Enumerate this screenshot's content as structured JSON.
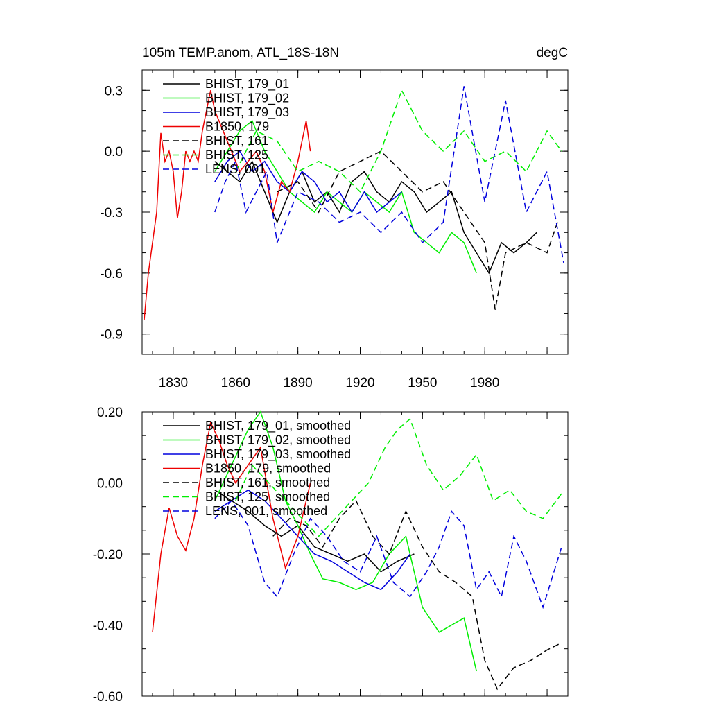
{
  "chart_data": [
    {
      "type": "line",
      "title": "105m TEMP.anom, ATL_18S-18N",
      "units": "degC",
      "xlim": [
        1815,
        2020
      ],
      "ylim": [
        -1.0,
        0.4
      ],
      "x_ticks": [
        1830,
        1860,
        1890,
        1920,
        1950,
        1980
      ],
      "y_ticks": [
        0.3,
        0.0,
        -0.3,
        -0.6,
        -0.9
      ],
      "y_tick_labels": [
        "0.3",
        "0.0",
        "-0.3",
        "-0.6",
        "-0.9"
      ],
      "x_tick_labels": [
        "1830",
        "1860",
        "1890",
        "1920",
        "1950",
        "1980"
      ],
      "legend_position": "top-left",
      "series": [
        {
          "name": "BHIST, 179_01",
          "color": "#000000",
          "dash": "solid",
          "x": [
            1850,
            1856,
            1862,
            1868,
            1874,
            1880,
            1886,
            1892,
            1898,
            1904,
            1910,
            1916,
            1922,
            1928,
            1934,
            1940,
            1946,
            1952,
            1958,
            1964,
            1970,
            1976,
            1982,
            1988,
            1994,
            2000,
            2005
          ],
          "y": [
            -0.05,
            -0.1,
            -0.15,
            -0.05,
            -0.2,
            -0.35,
            -0.2,
            -0.1,
            -0.25,
            -0.2,
            -0.3,
            -0.15,
            -0.1,
            -0.2,
            -0.25,
            -0.15,
            -0.2,
            -0.3,
            -0.25,
            -0.2,
            -0.4,
            -0.5,
            -0.6,
            -0.45,
            -0.5,
            -0.45,
            -0.4
          ]
        },
        {
          "name": "BHIST, 179_02",
          "color": "#00ee00",
          "dash": "solid",
          "x": [
            1850,
            1856,
            1862,
            1868,
            1874,
            1880,
            1886,
            1892,
            1898,
            1904,
            1910,
            1916,
            1922,
            1928,
            1934,
            1940,
            1946,
            1952,
            1958,
            1964,
            1970,
            1976
          ],
          "y": [
            -0.1,
            0.0,
            0.1,
            0.15,
            0.0,
            -0.1,
            -0.2,
            -0.25,
            -0.3,
            -0.2,
            -0.25,
            -0.3,
            -0.2,
            -0.25,
            -0.3,
            -0.2,
            -0.4,
            -0.45,
            -0.5,
            -0.4,
            -0.45,
            -0.6
          ]
        },
        {
          "name": "BHIST, 179_03",
          "color": "#0000dd",
          "dash": "solid",
          "x": [
            1850,
            1856,
            1862,
            1868,
            1874,
            1880,
            1886,
            1892,
            1898,
            1904,
            1910,
            1916,
            1922,
            1928,
            1934,
            1940
          ],
          "y": [
            -0.15,
            -0.05,
            0.0,
            -0.1,
            -0.05,
            -0.15,
            -0.2,
            -0.1,
            -0.15,
            -0.25,
            -0.2,
            -0.3,
            -0.2,
            -0.3,
            -0.25,
            -0.2
          ]
        },
        {
          "name": "B1850, 179",
          "color": "#ee0000",
          "dash": "solid",
          "x": [
            1816,
            1818,
            1820,
            1822,
            1824,
            1826,
            1828,
            1830,
            1832,
            1834,
            1836,
            1838,
            1840,
            1842,
            1844,
            1846,
            1848,
            1850,
            1854,
            1858,
            1862,
            1866,
            1870,
            1874,
            1878,
            1882,
            1886,
            1890,
            1894,
            1896
          ],
          "y": [
            -0.83,
            -0.6,
            -0.45,
            -0.3,
            0.09,
            -0.05,
            0.0,
            -0.1,
            -0.33,
            -0.2,
            0.0,
            -0.05,
            0.0,
            -0.05,
            0.1,
            0.2,
            0.3,
            0.2,
            0.1,
            0.0,
            -0.1,
            -0.05,
            0.0,
            -0.1,
            -0.3,
            -0.15,
            -0.2,
            -0.05,
            0.15,
            0.0
          ]
        },
        {
          "name": "BHIST, 161",
          "color": "#000000",
          "dash": "dashed",
          "x": [
            1880,
            1890,
            1900,
            1910,
            1920,
            1930,
            1940,
            1950,
            1960,
            1970,
            1980,
            1985,
            1990,
            2000,
            2010,
            2015
          ],
          "y": [
            -0.2,
            -0.15,
            -0.3,
            -0.1,
            -0.05,
            0.0,
            -0.1,
            -0.2,
            -0.15,
            -0.3,
            -0.45,
            -0.78,
            -0.5,
            -0.45,
            -0.5,
            -0.35
          ]
        },
        {
          "name": "BHIST, 125",
          "color": "#00ee00",
          "dash": "dashed",
          "x": [
            1860,
            1870,
            1880,
            1890,
            1900,
            1910,
            1920,
            1930,
            1940,
            1950,
            1960,
            1970,
            1980,
            1990,
            2000,
            2010,
            2017
          ],
          "y": [
            -0.1,
            0.1,
            0.05,
            -0.1,
            -0.05,
            -0.1,
            -0.2,
            0.0,
            0.3,
            0.1,
            0.0,
            0.1,
            -0.05,
            0.0,
            -0.1,
            0.1,
            0.0
          ]
        },
        {
          "name": "LENS, 001",
          "color": "#0000dd",
          "dash": "dashed",
          "x": [
            1850,
            1855,
            1860,
            1865,
            1870,
            1875,
            1880,
            1890,
            1900,
            1910,
            1920,
            1930,
            1940,
            1950,
            1960,
            1970,
            1980,
            1990,
            2000,
            2010,
            2018
          ],
          "y": [
            -0.3,
            -0.15,
            -0.05,
            -0.3,
            -0.2,
            -0.1,
            -0.45,
            -0.2,
            -0.25,
            -0.35,
            -0.3,
            -0.4,
            -0.3,
            -0.45,
            -0.35,
            0.32,
            -0.25,
            0.25,
            -0.3,
            -0.1,
            -0.55
          ]
        }
      ]
    },
    {
      "type": "line",
      "title": "",
      "xlim": [
        1815,
        2020
      ],
      "ylim": [
        -0.6,
        0.2
      ],
      "y_ticks": [
        0.2,
        0.0,
        -0.2,
        -0.4,
        -0.6
      ],
      "y_tick_labels": [
        "0.20",
        "0.00",
        "-0.20",
        "-0.40",
        "-0.60"
      ],
      "legend_position": "top-left",
      "series": [
        {
          "name": "BHIST, 179_01, smoothed",
          "color": "#000000",
          "dash": "solid",
          "x": [
            1850,
            1858,
            1866,
            1874,
            1882,
            1890,
            1898,
            1906,
            1914,
            1922,
            1930,
            1938,
            1946
          ],
          "y": [
            -0.02,
            -0.05,
            -0.08,
            -0.12,
            -0.15,
            -0.12,
            -0.18,
            -0.2,
            -0.22,
            -0.2,
            -0.25,
            -0.22,
            -0.2
          ]
        },
        {
          "name": "BHIST, 179_02, smoothed",
          "color": "#00ee00",
          "dash": "solid",
          "x": [
            1850,
            1858,
            1866,
            1872,
            1878,
            1884,
            1890,
            1896,
            1902,
            1910,
            1918,
            1926,
            1934,
            1942,
            1950,
            1958,
            1964,
            1970,
            1976
          ],
          "y": [
            -0.05,
            0.05,
            0.15,
            0.2,
            0.1,
            -0.05,
            -0.12,
            -0.2,
            -0.27,
            -0.28,
            -0.3,
            -0.28,
            -0.2,
            -0.15,
            -0.35,
            -0.42,
            -0.4,
            -0.38,
            -0.53
          ]
        },
        {
          "name": "BHIST, 179_03, smoothed",
          "color": "#0000dd",
          "dash": "solid",
          "x": [
            1850,
            1858,
            1866,
            1874,
            1882,
            1890,
            1898,
            1906,
            1914,
            1922,
            1930,
            1938,
            1944
          ],
          "y": [
            -0.08,
            -0.05,
            -0.02,
            -0.05,
            -0.1,
            -0.15,
            -0.2,
            -0.22,
            -0.25,
            -0.28,
            -0.3,
            -0.25,
            -0.2
          ]
        },
        {
          "name": "B1850, 179, smoothed",
          "color": "#ee0000",
          "dash": "solid",
          "x": [
            1820,
            1824,
            1828,
            1832,
            1836,
            1840,
            1844,
            1848,
            1852,
            1856,
            1860,
            1866,
            1872,
            1878,
            1884,
            1890,
            1896
          ],
          "y": [
            -0.42,
            -0.2,
            -0.07,
            -0.15,
            -0.19,
            -0.1,
            0.05,
            0.17,
            0.12,
            0.05,
            0.0,
            0.05,
            0.1,
            -0.1,
            -0.24,
            -0.15,
            0.0
          ]
        },
        {
          "name": "BHIST, 161, smoothed",
          "color": "#000000",
          "dash": "dashed",
          "x": [
            1878,
            1886,
            1894,
            1902,
            1910,
            1918,
            1926,
            1934,
            1942,
            1950,
            1958,
            1966,
            1974,
            1980,
            1986,
            1994,
            2002,
            2010,
            2017
          ],
          "y": [
            -0.15,
            -0.1,
            -0.12,
            -0.18,
            -0.1,
            -0.05,
            -0.15,
            -0.2,
            -0.08,
            -0.18,
            -0.25,
            -0.28,
            -0.32,
            -0.5,
            -0.58,
            -0.52,
            -0.5,
            -0.47,
            -0.45
          ]
        },
        {
          "name": "BHIST, 125, smoothed",
          "color": "#00ee00",
          "dash": "dashed",
          "x": [
            1860,
            1868,
            1876,
            1884,
            1892,
            1900,
            1908,
            1916,
            1924,
            1932,
            1938,
            1944,
            1952,
            1960,
            1968,
            1976,
            1984,
            1992,
            2000,
            2008,
            2017
          ],
          "y": [
            -0.05,
            0.05,
            0.0,
            -0.05,
            -0.1,
            -0.15,
            -0.1,
            -0.05,
            0.0,
            0.1,
            0.15,
            0.18,
            0.05,
            -0.02,
            0.02,
            0.08,
            -0.05,
            -0.02,
            -0.08,
            -0.1,
            -0.03
          ]
        },
        {
          "name": "LENS, 001, smoothed",
          "color": "#0000dd",
          "dash": "dashed",
          "x": [
            1850,
            1858,
            1866,
            1874,
            1880,
            1888,
            1896,
            1904,
            1912,
            1920,
            1928,
            1936,
            1944,
            1952,
            1958,
            1964,
            1970,
            1976,
            1982,
            1988,
            1994,
            2000,
            2008,
            2017
          ],
          "y": [
            -0.1,
            -0.05,
            -0.12,
            -0.28,
            -0.32,
            -0.2,
            -0.1,
            -0.15,
            -0.22,
            -0.25,
            -0.15,
            -0.28,
            -0.32,
            -0.25,
            -0.18,
            -0.08,
            -0.12,
            -0.3,
            -0.25,
            -0.32,
            -0.15,
            -0.22,
            -0.35,
            -0.18
          ]
        }
      ]
    }
  ]
}
